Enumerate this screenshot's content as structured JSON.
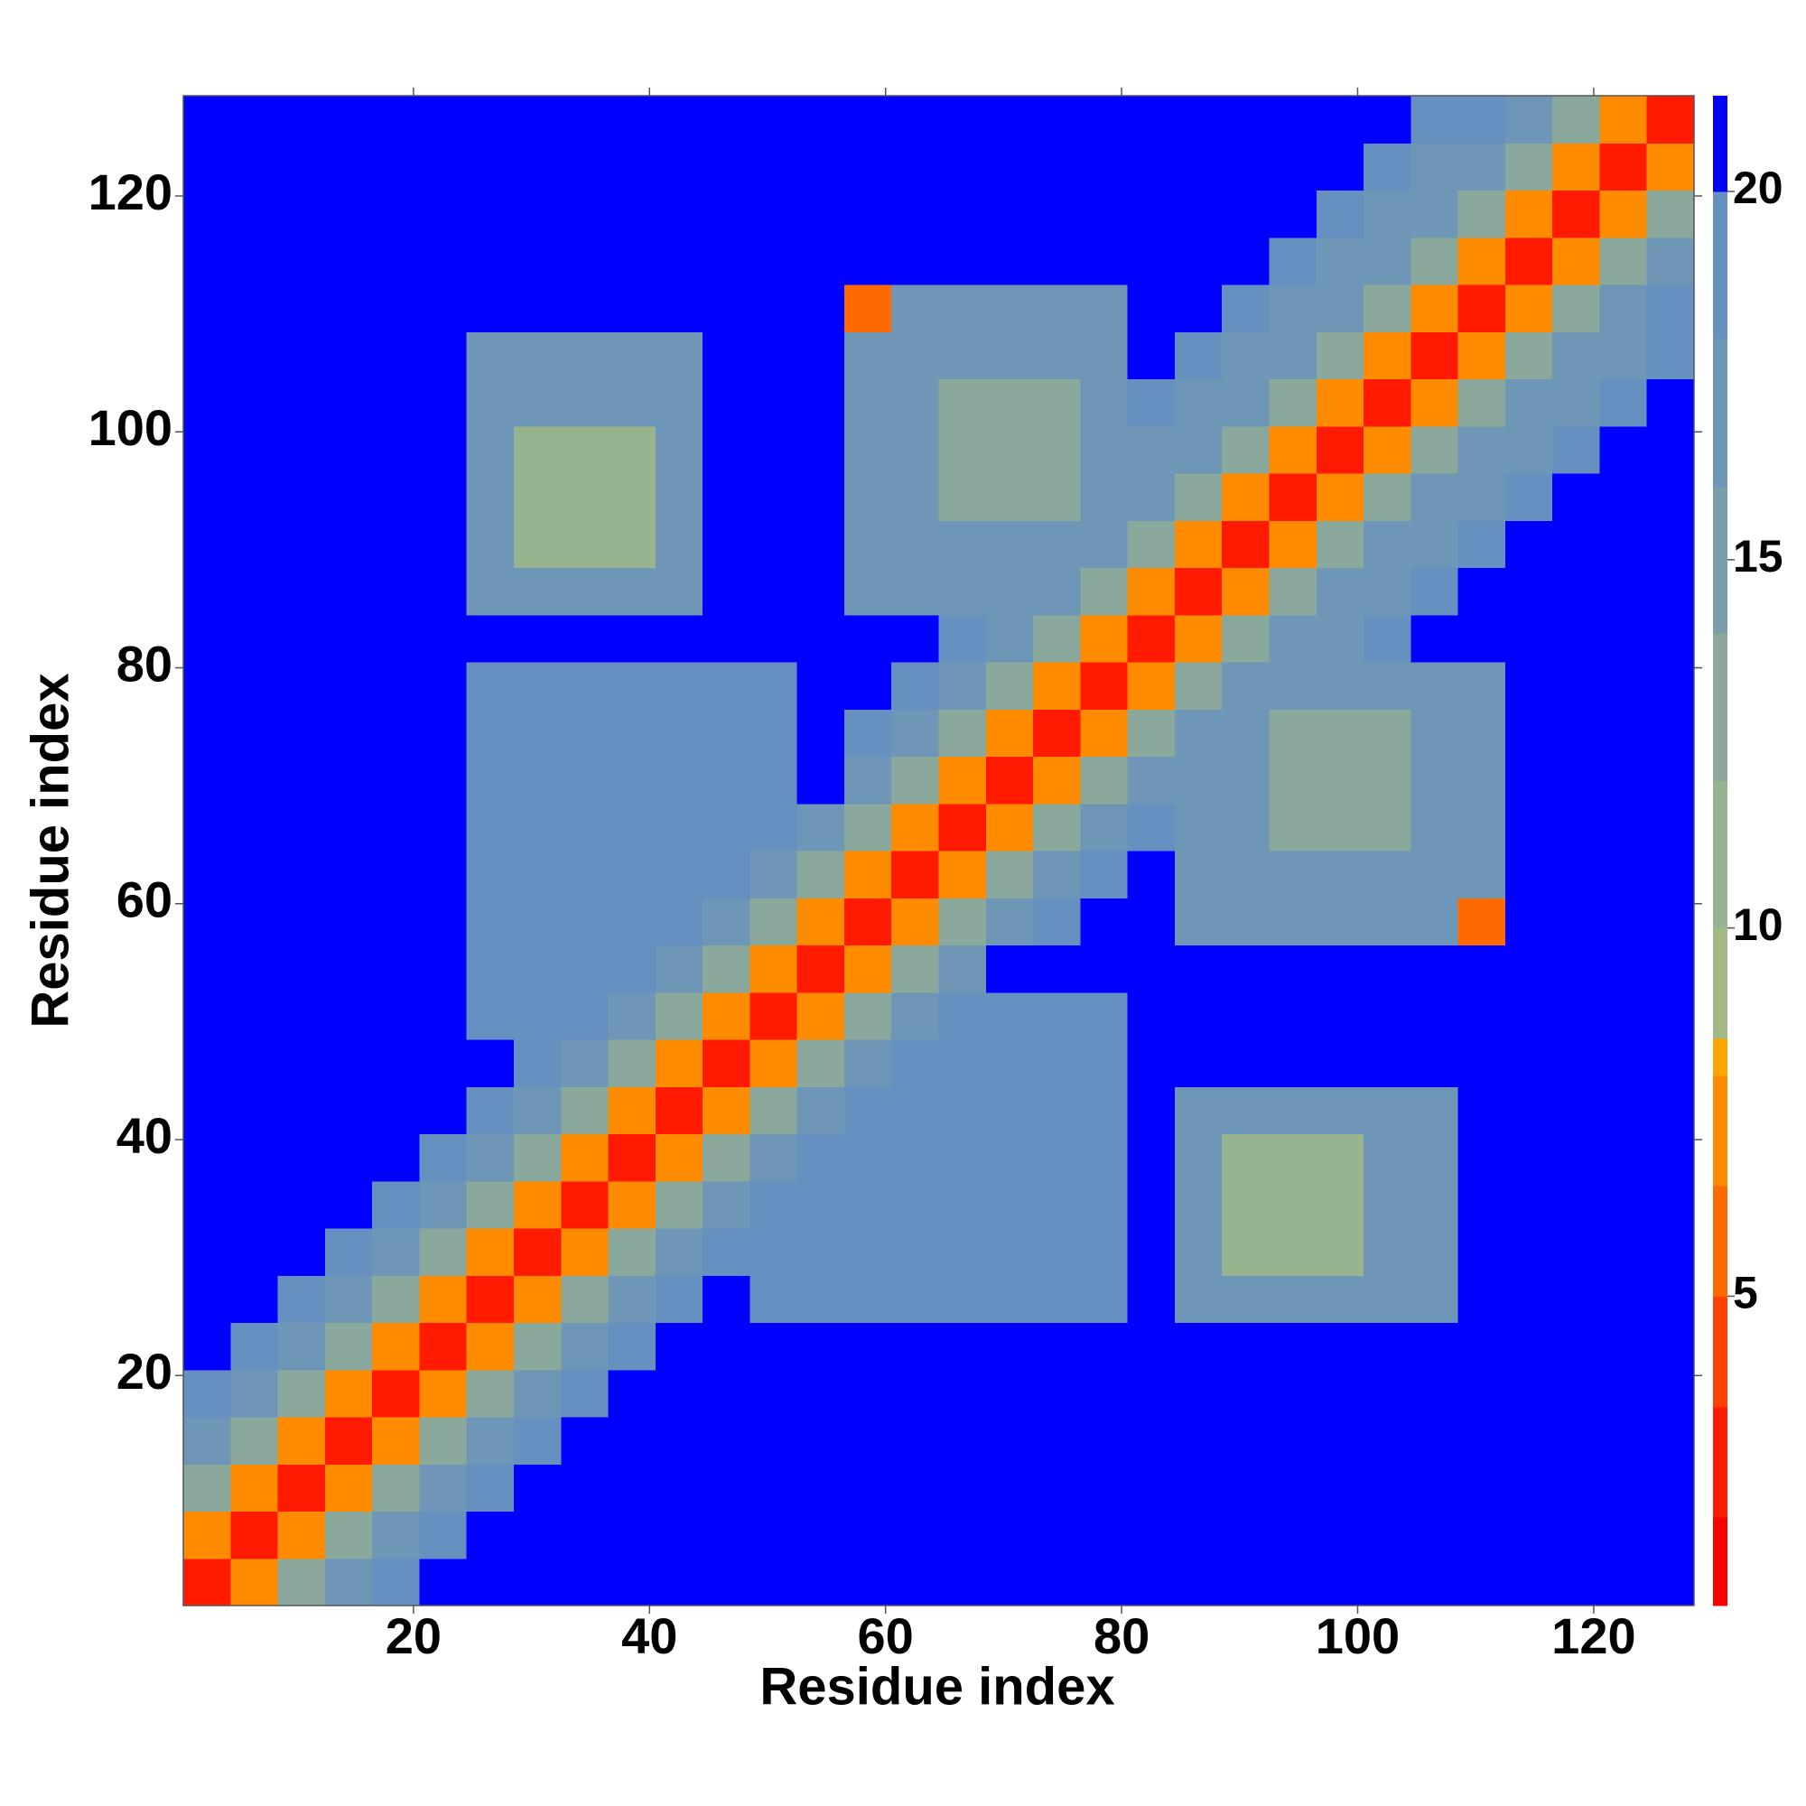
{
  "chart_data": {
    "type": "heatmap",
    "xlabel": "Residue index",
    "ylabel": "Residue index",
    "xlim": [
      0.5,
      128.5
    ],
    "ylim": [
      0.5,
      128.5
    ],
    "xticks": [
      20,
      40,
      60,
      80,
      100,
      120
    ],
    "yticks": [
      20,
      40,
      60,
      80,
      100,
      120
    ],
    "x": [
      2.5,
      6.5,
      10.5,
      14.5,
      18.5,
      22.5,
      26.5,
      30.5,
      34.5,
      38.5,
      42.5,
      46.5,
      50.5,
      54.5,
      58.5,
      62.5,
      66.5,
      70.5,
      74.5,
      78.5,
      82.5,
      86.5,
      90.5,
      94.5,
      98.5,
      102.5,
      106.5,
      110.5,
      114.5,
      118.5,
      122.5,
      126.5
    ],
    "y": [
      2.5,
      6.5,
      10.5,
      14.5,
      18.5,
      22.5,
      26.5,
      30.5,
      34.5,
      38.5,
      42.5,
      46.5,
      50.5,
      54.5,
      58.5,
      62.5,
      66.5,
      70.5,
      74.5,
      78.5,
      82.5,
      86.5,
      90.5,
      94.5,
      98.5,
      102.5,
      106.5,
      110.5,
      114.5,
      118.5,
      122.5,
      126.5
    ],
    "z": [
      [
        3,
        7,
        13,
        17,
        19,
        21,
        21,
        21,
        21,
        21,
        21,
        21,
        21,
        21,
        21,
        21,
        21,
        21,
        21,
        21,
        21,
        21,
        21,
        21,
        21,
        21,
        21,
        21,
        21,
        21,
        21,
        21
      ],
      [
        7,
        3,
        7,
        13,
        17,
        19,
        21,
        21,
        21,
        21,
        21,
        21,
        21,
        21,
        21,
        21,
        21,
        21,
        21,
        21,
        21,
        21,
        21,
        21,
        21,
        21,
        21,
        21,
        21,
        21,
        21,
        21
      ],
      [
        13,
        7,
        3,
        7,
        13,
        17,
        19,
        21,
        21,
        21,
        21,
        21,
        21,
        21,
        21,
        21,
        21,
        21,
        21,
        21,
        21,
        21,
        21,
        21,
        21,
        21,
        21,
        21,
        21,
        21,
        21,
        21
      ],
      [
        17,
        13,
        7,
        3,
        7,
        13,
        17,
        19,
        21,
        21,
        21,
        21,
        21,
        21,
        21,
        21,
        21,
        21,
        21,
        21,
        21,
        21,
        21,
        21,
        21,
        21,
        21,
        21,
        21,
        21,
        21,
        21
      ],
      [
        19,
        17,
        13,
        7,
        3,
        7,
        13,
        17,
        19,
        21,
        21,
        21,
        21,
        21,
        21,
        21,
        21,
        21,
        21,
        21,
        21,
        21,
        21,
        21,
        21,
        21,
        21,
        21,
        21,
        21,
        21,
        21
      ],
      [
        21,
        19,
        17,
        13,
        7,
        3,
        7,
        13,
        17,
        19,
        21,
        21,
        21,
        21,
        21,
        21,
        21,
        21,
        21,
        21,
        21,
        21,
        21,
        21,
        21,
        21,
        21,
        21,
        21,
        21,
        21,
        21
      ],
      [
        21,
        21,
        19,
        17,
        13,
        7,
        3,
        7,
        13,
        17,
        19,
        21,
        18,
        18,
        18,
        18,
        18,
        18,
        18,
        18,
        21,
        16,
        16,
        16,
        16,
        16,
        16,
        21,
        21,
        21,
        21,
        21
      ],
      [
        21,
        21,
        21,
        19,
        17,
        13,
        7,
        3,
        7,
        13,
        17,
        19,
        18,
        18,
        18,
        18,
        18,
        18,
        18,
        18,
        21,
        16,
        11,
        11,
        11,
        16,
        16,
        21,
        21,
        21,
        21,
        21
      ],
      [
        21,
        21,
        21,
        21,
        19,
        17,
        13,
        7,
        3,
        7,
        13,
        17,
        18,
        18,
        18,
        18,
        18,
        18,
        18,
        18,
        21,
        16,
        11,
        11,
        11,
        16,
        16,
        21,
        21,
        21,
        21,
        21
      ],
      [
        21,
        21,
        21,
        21,
        21,
        19,
        17,
        13,
        7,
        3,
        7,
        13,
        17,
        18,
        18,
        18,
        18,
        18,
        18,
        18,
        21,
        16,
        11,
        11,
        11,
        16,
        16,
        21,
        21,
        21,
        21,
        21
      ],
      [
        21,
        21,
        21,
        21,
        21,
        21,
        19,
        17,
        13,
        7,
        3,
        7,
        13,
        17,
        18,
        18,
        18,
        18,
        18,
        18,
        21,
        16,
        16,
        16,
        16,
        16,
        16,
        21,
        21,
        21,
        21,
        21
      ],
      [
        21,
        21,
        21,
        21,
        21,
        21,
        21,
        19,
        17,
        13,
        7,
        3,
        7,
        13,
        17,
        18,
        18,
        18,
        18,
        18,
        21,
        21,
        21,
        21,
        21,
        21,
        21,
        21,
        21,
        21,
        21,
        21
      ],
      [
        21,
        21,
        21,
        21,
        21,
        21,
        18,
        18,
        18,
        17,
        13,
        7,
        3,
        7,
        13,
        17,
        18,
        18,
        18,
        18,
        21,
        21,
        21,
        21,
        21,
        21,
        21,
        21,
        21,
        21,
        21,
        21
      ],
      [
        21,
        21,
        21,
        21,
        21,
        21,
        18,
        18,
        18,
        18,
        17,
        13,
        7,
        3,
        7,
        13,
        17,
        21,
        21,
        21,
        21,
        21,
        21,
        21,
        21,
        21,
        21,
        21,
        21,
        21,
        21,
        21
      ],
      [
        21,
        21,
        21,
        21,
        21,
        21,
        18,
        18,
        18,
        18,
        18,
        17,
        13,
        7,
        3,
        7,
        13,
        17,
        19,
        21,
        21,
        16,
        16,
        16,
        16,
        16,
        16,
        6,
        21,
        21,
        21,
        21
      ],
      [
        21,
        21,
        21,
        21,
        21,
        21,
        18,
        18,
        18,
        18,
        18,
        18,
        17,
        13,
        7,
        3,
        7,
        13,
        17,
        19,
        21,
        16,
        16,
        16,
        16,
        16,
        16,
        16,
        21,
        21,
        21,
        21
      ],
      [
        21,
        21,
        21,
        21,
        21,
        21,
        18,
        18,
        18,
        18,
        18,
        18,
        18,
        17,
        13,
        7,
        3,
        7,
        13,
        17,
        19,
        16,
        16,
        12,
        12,
        12,
        16,
        16,
        21,
        21,
        21,
        21
      ],
      [
        21,
        21,
        21,
        21,
        21,
        21,
        18,
        18,
        18,
        18,
        18,
        18,
        18,
        21,
        17,
        13,
        7,
        3,
        7,
        13,
        17,
        16,
        16,
        12,
        12,
        12,
        16,
        16,
        21,
        21,
        21,
        21
      ],
      [
        21,
        21,
        21,
        21,
        21,
        21,
        18,
        18,
        18,
        18,
        18,
        18,
        18,
        21,
        19,
        17,
        13,
        7,
        3,
        7,
        13,
        17,
        16,
        12,
        12,
        12,
        16,
        16,
        21,
        21,
        21,
        21
      ],
      [
        21,
        21,
        21,
        21,
        21,
        21,
        18,
        18,
        18,
        18,
        18,
        18,
        18,
        21,
        21,
        19,
        17,
        13,
        7,
        3,
        7,
        13,
        17,
        16,
        16,
        16,
        16,
        16,
        21,
        21,
        21,
        21
      ],
      [
        21,
        21,
        21,
        21,
        21,
        21,
        21,
        21,
        21,
        21,
        21,
        21,
        21,
        21,
        21,
        21,
        19,
        17,
        13,
        7,
        3,
        7,
        13,
        17,
        17,
        19,
        21,
        21,
        21,
        21,
        21,
        21
      ],
      [
        21,
        21,
        21,
        21,
        21,
        21,
        16,
        16,
        16,
        16,
        16,
        21,
        21,
        21,
        16,
        16,
        16,
        16,
        17,
        13,
        7,
        3,
        7,
        13,
        17,
        17,
        19,
        21,
        21,
        21,
        21,
        21
      ],
      [
        21,
        21,
        21,
        21,
        21,
        21,
        16,
        11,
        11,
        11,
        16,
        21,
        21,
        21,
        16,
        16,
        16,
        16,
        16,
        17,
        13,
        7,
        3,
        7,
        13,
        17,
        17,
        19,
        21,
        21,
        21,
        21
      ],
      [
        21,
        21,
        21,
        21,
        21,
        21,
        16,
        11,
        11,
        11,
        16,
        21,
        21,
        21,
        16,
        16,
        12,
        12,
        12,
        16,
        17,
        13,
        7,
        3,
        7,
        13,
        17,
        17,
        19,
        21,
        21,
        21
      ],
      [
        21,
        21,
        21,
        21,
        21,
        21,
        16,
        11,
        11,
        11,
        16,
        21,
        21,
        21,
        16,
        16,
        12,
        12,
        12,
        16,
        17,
        17,
        13,
        7,
        3,
        7,
        13,
        17,
        17,
        19,
        21,
        21
      ],
      [
        21,
        21,
        21,
        21,
        21,
        21,
        16,
        16,
        16,
        16,
        16,
        21,
        21,
        21,
        16,
        16,
        12,
        12,
        12,
        16,
        19,
        17,
        17,
        13,
        7,
        3,
        7,
        13,
        17,
        17,
        19,
        21
      ],
      [
        21,
        21,
        21,
        21,
        21,
        21,
        16,
        16,
        16,
        16,
        16,
        21,
        21,
        21,
        16,
        16,
        16,
        16,
        16,
        16,
        21,
        19,
        17,
        17,
        13,
        7,
        3,
        7,
        13,
        17,
        17,
        19
      ],
      [
        21,
        21,
        21,
        21,
        21,
        21,
        21,
        21,
        21,
        21,
        21,
        21,
        21,
        21,
        6,
        16,
        16,
        16,
        16,
        16,
        21,
        21,
        19,
        17,
        17,
        13,
        7,
        3,
        7,
        13,
        17,
        19
      ],
      [
        21,
        21,
        21,
        21,
        21,
        21,
        21,
        21,
        21,
        21,
        21,
        21,
        21,
        21,
        21,
        21,
        21,
        21,
        21,
        21,
        21,
        21,
        21,
        19,
        17,
        17,
        13,
        7,
        3,
        7,
        13,
        17
      ],
      [
        21,
        21,
        21,
        21,
        21,
        21,
        21,
        21,
        21,
        21,
        21,
        21,
        21,
        21,
        21,
        21,
        21,
        21,
        21,
        21,
        21,
        21,
        21,
        21,
        19,
        17,
        17,
        13,
        7,
        3,
        7,
        13
      ],
      [
        21,
        21,
        21,
        21,
        21,
        21,
        21,
        21,
        21,
        21,
        21,
        21,
        21,
        21,
        21,
        21,
        21,
        21,
        21,
        21,
        21,
        21,
        21,
        21,
        21,
        19,
        17,
        17,
        13,
        7,
        3,
        7
      ],
      [
        21,
        21,
        21,
        21,
        21,
        21,
        21,
        21,
        21,
        21,
        21,
        21,
        21,
        21,
        21,
        21,
        21,
        21,
        21,
        21,
        21,
        21,
        21,
        21,
        21,
        21,
        19,
        19,
        17,
        13,
        7,
        3
      ]
    ],
    "colorbar": {
      "lim": [
        0.8,
        21.3
      ],
      "ticks": [
        5,
        10,
        15,
        20
      ],
      "levels": [
        0.8,
        2,
        3.5,
        5,
        6.5,
        8,
        8.5,
        10,
        12,
        14,
        16,
        18,
        20,
        21.3
      ],
      "colors": [
        "#ff0000",
        "#ff1a00",
        "#ff4000",
        "#ff6a00",
        "#ff8c00",
        "#ffa500",
        "#a4b886",
        "#98b48e",
        "#8aa89c",
        "#7a9eaa",
        "#6e96b6",
        "#6690c0",
        "#0000ff"
      ]
    }
  }
}
